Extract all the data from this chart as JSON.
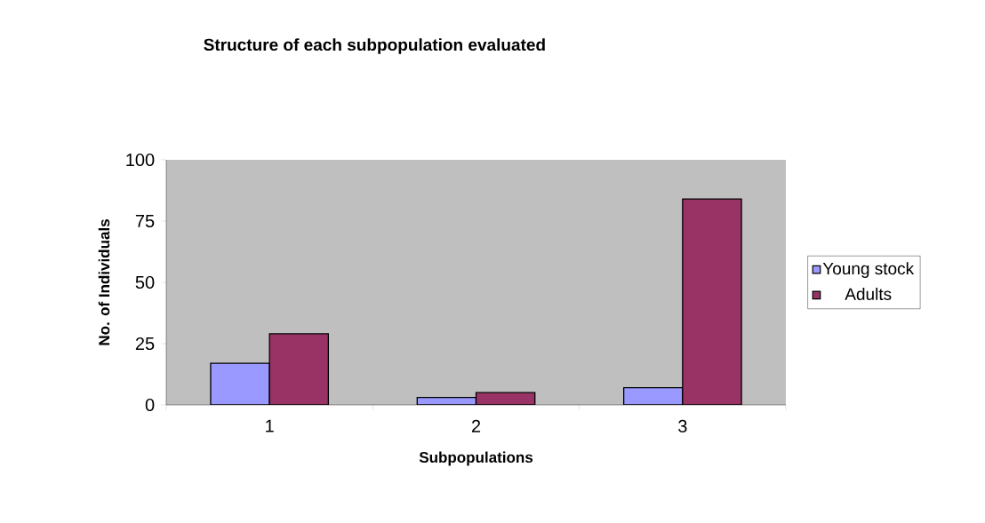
{
  "chart_data": {
    "type": "bar",
    "title": "Structure of each subpopulation evaluated",
    "xlabel": "Subpopulations",
    "ylabel": "No. of Individuals",
    "categories": [
      "1",
      "2",
      "3"
    ],
    "series": [
      {
        "name": "Young stock",
        "color": "#9999ff",
        "values": [
          17,
          3,
          7
        ]
      },
      {
        "name": "Adults",
        "color": "#993366",
        "values": [
          29,
          5,
          84
        ]
      }
    ],
    "ylim": [
      0,
      100
    ],
    "yticks": [
      0,
      25,
      50,
      75,
      100
    ],
    "legend": "right"
  }
}
